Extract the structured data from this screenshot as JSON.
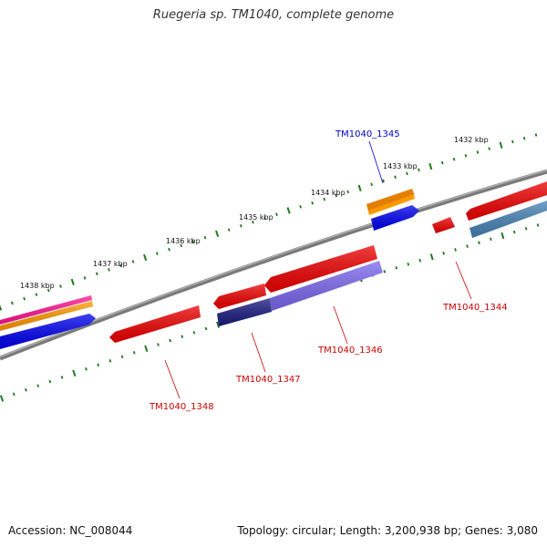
{
  "header": {
    "title": "Ruegeria sp. TM1040, complete genome"
  },
  "footer": {
    "accession": "Accession: NC_008044",
    "summary": "Topology: circular; Length: 3,200,938 bp; Genes: 3,080"
  },
  "scale": {
    "tick_labels": [
      "1438 kbp",
      "1437 kbp",
      "1436 kbp",
      "1435 kbp",
      "1434 kbp",
      "1433 kbp",
      "1432 kbp"
    ]
  },
  "gene_labels": [
    "TM1040_1345",
    "TM1040_1344",
    "TM1040_1346",
    "TM1040_1347",
    "TM1040_1348"
  ],
  "colors": {
    "backbone": "#7a7a7a",
    "tick_green": "#1e7a1e",
    "cds_red": "#ee0000",
    "cds_blue": "#0000ee",
    "cds_navy": "#1a1a80",
    "cds_purple": "#7b68ee",
    "cds_steel": "#4682b4",
    "cds_orange": "#ff9900",
    "cds_magenta": "#ff1493",
    "label_red": "#cc0000",
    "label_blue": "#0000cc"
  }
}
